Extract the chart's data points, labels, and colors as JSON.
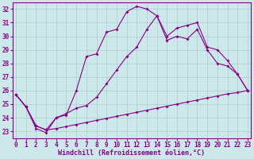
{
  "bg_color": "#cce8ea",
  "grid_color": "#aacccc",
  "line_color": "#880088",
  "xlim": [
    0,
    23
  ],
  "ylim": [
    22.5,
    32.5
  ],
  "yticks": [
    23,
    24,
    25,
    26,
    27,
    28,
    29,
    30,
    31,
    32
  ],
  "xticks": [
    0,
    1,
    2,
    3,
    4,
    5,
    6,
    7,
    8,
    9,
    10,
    11,
    12,
    13,
    14,
    15,
    16,
    17,
    18,
    19,
    20,
    21,
    22,
    23
  ],
  "series1_y": [
    25.7,
    24.8,
    23.4,
    23.1,
    23.2,
    23.35,
    23.5,
    23.65,
    23.8,
    23.95,
    24.1,
    24.25,
    24.4,
    24.55,
    24.7,
    24.85,
    25.0,
    25.15,
    25.3,
    25.45,
    25.6,
    25.75,
    25.85,
    26.0
  ],
  "series2_y": [
    25.7,
    24.8,
    23.4,
    23.1,
    24.0,
    24.3,
    24.7,
    24.9,
    25.5,
    26.5,
    27.5,
    28.5,
    29.2,
    30.5,
    31.5,
    30.0,
    30.6,
    30.8,
    31.0,
    29.2,
    29.0,
    28.2,
    27.2,
    26.0
  ],
  "series3_y": [
    25.7,
    24.8,
    23.2,
    22.9,
    24.0,
    24.2,
    26.0,
    28.5,
    28.7,
    30.3,
    30.5,
    31.8,
    32.2,
    32.0,
    31.5,
    29.7,
    30.0,
    29.8,
    30.5,
    29.0,
    28.0,
    27.8,
    27.2,
    26.0
  ],
  "xlabel": "Windchill (Refroidissement éolien,°C)",
  "xlabel_fontsize": 6.0,
  "tick_fontsize": 5.5,
  "marker_size": 2.0,
  "line_width": 0.8
}
